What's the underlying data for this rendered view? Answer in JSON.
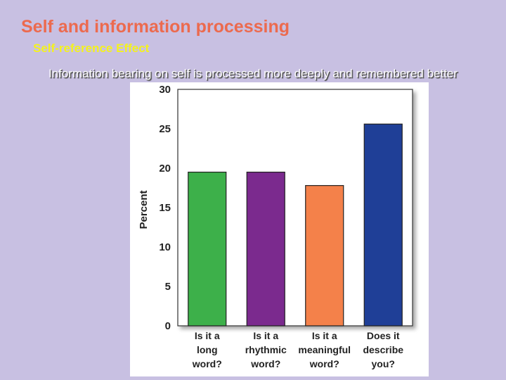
{
  "slide": {
    "title": "Self and information processing",
    "subtitle": "Self-reference Effect",
    "caption": "Information bearing on self is processed more deeply  and remembered better"
  },
  "colors": {
    "background": "#c8c0e2",
    "title": "#ec6a4e",
    "subtitle": "#f4f21e",
    "bars": [
      "#3db04a",
      "#7b2a8e",
      "#f4814a",
      "#1f3f97"
    ]
  },
  "chart_data": {
    "type": "bar",
    "title": "",
    "xlabel": "",
    "ylabel": "Percent",
    "ylim": [
      0,
      30
    ],
    "yticks": [
      "0",
      "5",
      "10",
      "15",
      "20",
      "25",
      "30"
    ],
    "grid": false,
    "legend": "none",
    "categories": [
      [
        "Is it a",
        "long",
        "word?"
      ],
      [
        "Is it a",
        "rhythmic",
        "word?"
      ],
      [
        "Is it a",
        "meaningful",
        "word?"
      ],
      [
        "Does it",
        "describe",
        "you?"
      ]
    ],
    "values": [
      19.5,
      19.5,
      17.8,
      25.6
    ]
  }
}
